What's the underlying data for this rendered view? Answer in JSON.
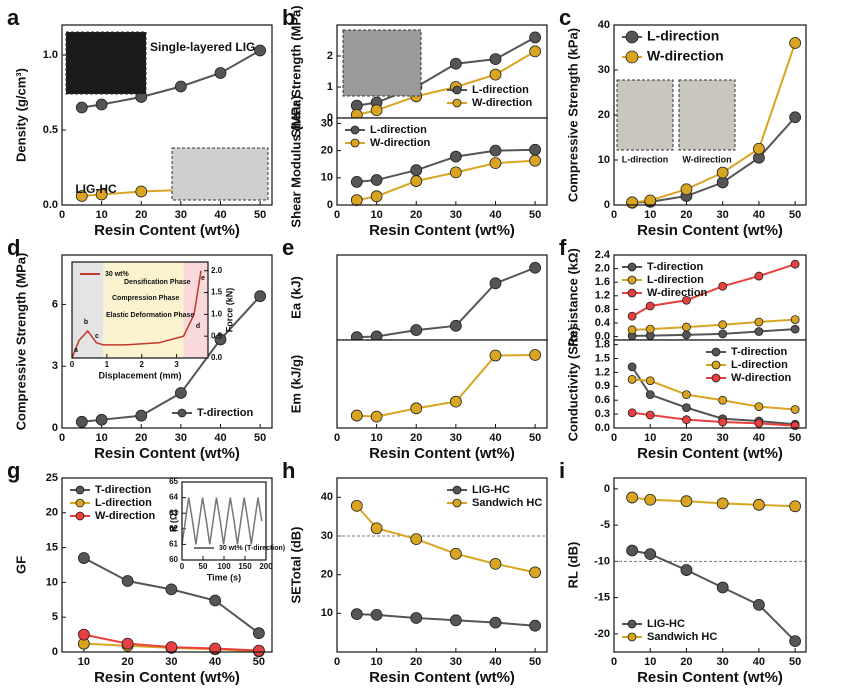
{
  "chart_data": [
    {
      "type": "line",
      "panel": "a",
      "ylabel": "Density (g/cm³)",
      "xlabel": "Resin Content (wt%)",
      "x": [
        5,
        10,
        20,
        30,
        40,
        50
      ],
      "xlim": [
        0,
        53
      ],
      "xticks": [
        0,
        10,
        20,
        30,
        40,
        50
      ],
      "ylim": [
        0,
        1.2
      ],
      "yticks": [
        {
          "value": 0,
          "label": "0.0"
        },
        0.5,
        {
          "value": 1,
          "label": "1.0"
        }
      ],
      "series": [
        {
          "color": "#555555",
          "values": [
            0.65,
            0.67,
            0.72,
            0.79,
            0.88,
            1.03
          ]
        },
        {
          "color": "#d9a521",
          "values": [
            0.06,
            0.07,
            0.09,
            0.1,
            0.14,
            0.18
          ]
        }
      ],
      "annotations": [
        "Single-layered LIG",
        "LIG-HC"
      ]
    },
    {
      "type": "line",
      "panel": "b",
      "ylabel": "Shear Strength (MPa)",
      "x": [
        5,
        10,
        20,
        30,
        40,
        50
      ],
      "xlim": [
        0,
        53
      ],
      "ylim": [
        0,
        3
      ],
      "yticks": [
        0,
        1,
        2
      ],
      "legend": "lower right",
      "series": [
        {
          "name": "L-direction",
          "color": "#555555",
          "values": [
            0.4,
            0.5,
            1.0,
            1.75,
            1.9,
            2.6
          ]
        },
        {
          "name": "W-direction",
          "color": "#d9a521",
          "values": [
            0.1,
            0.25,
            0.7,
            1.0,
            1.4,
            2.15
          ]
        }
      ]
    },
    {
      "type": "line",
      "ylabel": "Shear Modulus (MPa)",
      "xlabel": "Resin Content (wt%)",
      "x": [
        5,
        10,
        20,
        30,
        40,
        50
      ],
      "xlim": [
        0,
        53
      ],
      "xticks": [
        0,
        10,
        20,
        30,
        40,
        50
      ],
      "ylim": [
        0,
        32
      ],
      "yticks": [
        0,
        10,
        20,
        30
      ],
      "legend": "upper left",
      "series": [
        {
          "name": "L-direction",
          "color": "#555555",
          "values": [
            8.5,
            9.2,
            12.8,
            17.8,
            20,
            20.3
          ]
        },
        {
          "name": "W-direction",
          "color": "#d9a521",
          "values": [
            1.8,
            3.2,
            8.8,
            12,
            15.4,
            16.3
          ]
        }
      ]
    },
    {
      "type": "line",
      "panel": "c",
      "ylabel": "Compressive Strength (kPa)",
      "xlabel": "Resin Content (wt%)",
      "x": [
        5,
        10,
        20,
        30,
        40,
        50
      ],
      "xlim": [
        0,
        53
      ],
      "xticks": [
        0,
        10,
        20,
        30,
        40,
        50
      ],
      "ylim": [
        0,
        40
      ],
      "yticks": [
        0,
        10,
        20,
        30,
        40
      ],
      "legend": "upper left",
      "legend_large": true,
      "series": [
        {
          "name": "L-direction",
          "color": "#555555",
          "values": [
            0.5,
            0.7,
            2,
            5,
            10.5,
            19.5
          ]
        },
        {
          "name": "W-direction",
          "color": "#d9a521",
          "values": [
            0.6,
            1.0,
            3.5,
            7.2,
            12.5,
            36
          ]
        }
      ],
      "annotations": [
        "L-direction",
        "W-direction"
      ]
    },
    {
      "type": "line",
      "panel": "d",
      "ylabel": "Compressive Strength (MPa)",
      "xlabel": "Resin Content (wt%)",
      "x": [
        5,
        10,
        20,
        30,
        40,
        50
      ],
      "xlim": [
        0,
        53
      ],
      "xticks": [
        0,
        10,
        20,
        30,
        40,
        50
      ],
      "ylim": [
        0,
        8.4
      ],
      "yticks": [
        0,
        3,
        6
      ],
      "legend": "lower right",
      "series": [
        {
          "name": "T-direction",
          "color": "#555555",
          "values": [
            0.3,
            0.4,
            0.6,
            1.7,
            4.3,
            6.4
          ]
        }
      ]
    },
    {
      "type": "line",
      "inset": true,
      "ylabel": "Force (kN)",
      "yaxis_side": "right",
      "xlabel": "Displacement (mm)",
      "x": [
        0,
        0.2,
        0.45,
        0.7,
        0.9,
        1.5,
        2.5,
        3.2,
        3.5,
        3.7
      ],
      "xlim": [
        0,
        3.9
      ],
      "xticks": [
        0,
        1,
        2,
        3
      ],
      "ylim": [
        0,
        2.2
      ],
      "yticks": [
        {
          "value": 0,
          "label": "0.0"
        },
        0.5,
        {
          "value": 1,
          "label": "1.0"
        },
        1.5,
        {
          "value": 2,
          "label": "2.0"
        }
      ],
      "legend": "upper left",
      "markers": false,
      "bands": [
        {
          "from": 0,
          "to": 0.9,
          "color": "#e4e4e4"
        },
        {
          "from": 0.9,
          "to": 3.2,
          "color": "#fbf3cf"
        },
        {
          "from": 3.2,
          "to": 3.9,
          "color": "#f9d9dc"
        }
      ],
      "series": [
        {
          "name": "30 wt%",
          "color": "#c0392b",
          "values": [
            0,
            0.4,
            0.62,
            0.35,
            0.3,
            0.3,
            0.35,
            0.5,
            1.0,
            2.0
          ]
        }
      ],
      "annotations": [
        "Densification Phase",
        "Compression Phase",
        "Elastic Deformation Phase",
        "a",
        "b",
        "c",
        "d",
        "e"
      ]
    },
    {
      "type": "line",
      "panel": "e",
      "ylabel": "Ea (kJ)",
      "x": [
        5,
        10,
        20,
        30,
        40,
        50
      ],
      "xlim": [
        0,
        53
      ],
      "ylim": [
        0,
        6
      ],
      "series": [
        {
          "color": "#555555",
          "values": [
            0.2,
            0.25,
            0.7,
            1.0,
            4.0,
            5.1
          ]
        }
      ]
    },
    {
      "type": "line",
      "ylabel": "Em (kJ/g)",
      "xlabel": "Resin Content (wt%)",
      "x": [
        5,
        10,
        20,
        30,
        40,
        50
      ],
      "xlim": [
        0,
        53
      ],
      "xticks": [
        0,
        10,
        20,
        30,
        40,
        50
      ],
      "ylim": [
        0,
        17
      ],
      "series": [
        {
          "color": "#d9a521",
          "values": [
            2.4,
            2.2,
            3.8,
            5.1,
            14,
            14.1
          ]
        }
      ]
    },
    {
      "type": "line",
      "panel": "f",
      "ylabel": "Resistance (kΩ)",
      "x": [
        5,
        10,
        20,
        30,
        40,
        50
      ],
      "xlim": [
        0,
        53
      ],
      "ylim": [
        -0.1,
        2.4
      ],
      "yticks": [
        {
          "value": 0,
          "label": "0.0"
        },
        0.4,
        0.8,
        1.2,
        1.6,
        {
          "value": 2,
          "label": "2.0"
        },
        2.4
      ],
      "legend": "upper left",
      "small_markers": true,
      "series": [
        {
          "name": "T-direction",
          "color": "#555555",
          "values": [
            0.02,
            0.03,
            0.05,
            0.08,
            0.15,
            0.22
          ]
        },
        {
          "name": "L-direction",
          "color": "#d9a521",
          "values": [
            0.2,
            0.22,
            0.28,
            0.35,
            0.43,
            0.5
          ]
        },
        {
          "name": "W-direction",
          "color": "#e8403f",
          "values": [
            0.6,
            0.9,
            1.07,
            1.48,
            1.78,
            2.13
          ]
        }
      ]
    },
    {
      "type": "line",
      "ylabel": "Conductivity (S/m)",
      "xlabel": "Resin Content (wt%)",
      "x": [
        5,
        10,
        20,
        30,
        40,
        50
      ],
      "xlim": [
        0,
        53
      ],
      "xticks": [
        0,
        10,
        20,
        30,
        40,
        50
      ],
      "ylim": [
        0,
        1.9
      ],
      "yticks": [
        {
          "value": 0,
          "label": "0.0"
        },
        0.3,
        0.6,
        0.9,
        1.2,
        1.5,
        1.8
      ],
      "legend": "upper right",
      "small_markers": true,
      "series": [
        {
          "name": "T-direction",
          "color": "#555555",
          "values": [
            1.32,
            0.72,
            0.44,
            0.2,
            0.15,
            0.08
          ]
        },
        {
          "name": "L-direction",
          "color": "#d9a521",
          "values": [
            1.05,
            1.02,
            0.72,
            0.6,
            0.46,
            0.4
          ]
        },
        {
          "name": "W-direction",
          "color": "#e8403f",
          "values": [
            0.33,
            0.28,
            0.18,
            0.13,
            0.1,
            0.05
          ]
        }
      ]
    },
    {
      "type": "line",
      "panel": "g",
      "ylabel": "GF",
      "xlabel": "Resin Content (wt%)",
      "x": [
        10,
        20,
        30,
        40,
        50
      ],
      "xlim": [
        5,
        53
      ],
      "xticks": [
        10,
        20,
        30,
        40,
        50
      ],
      "ylim": [
        0,
        25
      ],
      "yticks": [
        0,
        5,
        10,
        15,
        20,
        25
      ],
      "legend": "upper left",
      "series": [
        {
          "name": "T-direction",
          "color": "#555555",
          "values": [
            13.5,
            10.2,
            9,
            7.4,
            2.7
          ]
        },
        {
          "name": "L-direction",
          "color": "#d9a521",
          "values": [
            1.2,
            0.9,
            0.6,
            0.4,
            0.1
          ]
        },
        {
          "name": "W-direction",
          "color": "#e8403f",
          "values": [
            2.5,
            1.2,
            0.7,
            0.5,
            0.2
          ]
        }
      ]
    },
    {
      "type": "line",
      "inset": true,
      "ylabel": "R (Ω)",
      "xlabel": "Time (s)",
      "x": [
        0,
        8,
        16,
        25,
        33,
        41,
        49,
        58,
        66,
        74,
        82,
        91,
        99,
        107,
        115,
        124,
        132,
        140,
        148,
        157,
        165,
        173,
        181,
        190
      ],
      "xlim": [
        0,
        200
      ],
      "xticks": [
        0,
        50,
        100,
        150,
        200
      ],
      "ylim": [
        60,
        65
      ],
      "yticks": [
        60,
        61,
        62,
        63,
        64,
        65
      ],
      "legend": "lower center",
      "markers": false,
      "series": [
        {
          "name": "30 wt% (T-direction)",
          "color": "#777777",
          "values": [
            61,
            62.5,
            64,
            62.5,
            61,
            62.5,
            64,
            62.5,
            61,
            62.5,
            64,
            62.5,
            61,
            62.5,
            64,
            62.5,
            61,
            62.5,
            64,
            62.5,
            61,
            62.5,
            64,
            62.5
          ]
        }
      ]
    },
    {
      "type": "line",
      "panel": "h",
      "ylabel": "SETotal (dB)",
      "xlabel": "Resin Content (wt%)",
      "x": [
        5,
        10,
        20,
        30,
        40,
        50
      ],
      "xlim": [
        0,
        53
      ],
      "xticks": [
        0,
        10,
        20,
        30,
        40,
        50
      ],
      "ylim": [
        0,
        45
      ],
      "yticks": [
        10,
        20,
        30,
        40
      ],
      "legend": "upper right",
      "hline": 30,
      "series": [
        {
          "name": "LIG-HC",
          "color": "#555555",
          "values": [
            9.8,
            9.6,
            8.8,
            8.2,
            7.6,
            6.8
          ]
        },
        {
          "name": "Sandwich HC",
          "color": "#d9a521",
          "values": [
            37.8,
            32,
            29.2,
            25.4,
            22.8,
            20.6
          ]
        }
      ]
    },
    {
      "type": "line",
      "panel": "i",
      "ylabel": "RL (dB)",
      "xlabel": "Resin Content (wt%)",
      "x": [
        5,
        10,
        20,
        30,
        40,
        50
      ],
      "xlim": [
        0,
        53
      ],
      "xticks": [
        0,
        10,
        20,
        30,
        40,
        50
      ],
      "ylim": [
        -22.5,
        1.5
      ],
      "yticks": [
        -20,
        -15,
        -10,
        -5,
        0
      ],
      "legend": "lower left",
      "hline": -10,
      "series": [
        {
          "name": "LIG-HC",
          "color": "#555555",
          "values": [
            -8.5,
            -9,
            -11.2,
            -13.6,
            -16,
            -21
          ]
        },
        {
          "name": "Sandwich HC",
          "color": "#d9a521",
          "values": [
            -1.2,
            -1.5,
            -1.7,
            -2,
            -2.2,
            -2.4
          ]
        }
      ]
    }
  ]
}
